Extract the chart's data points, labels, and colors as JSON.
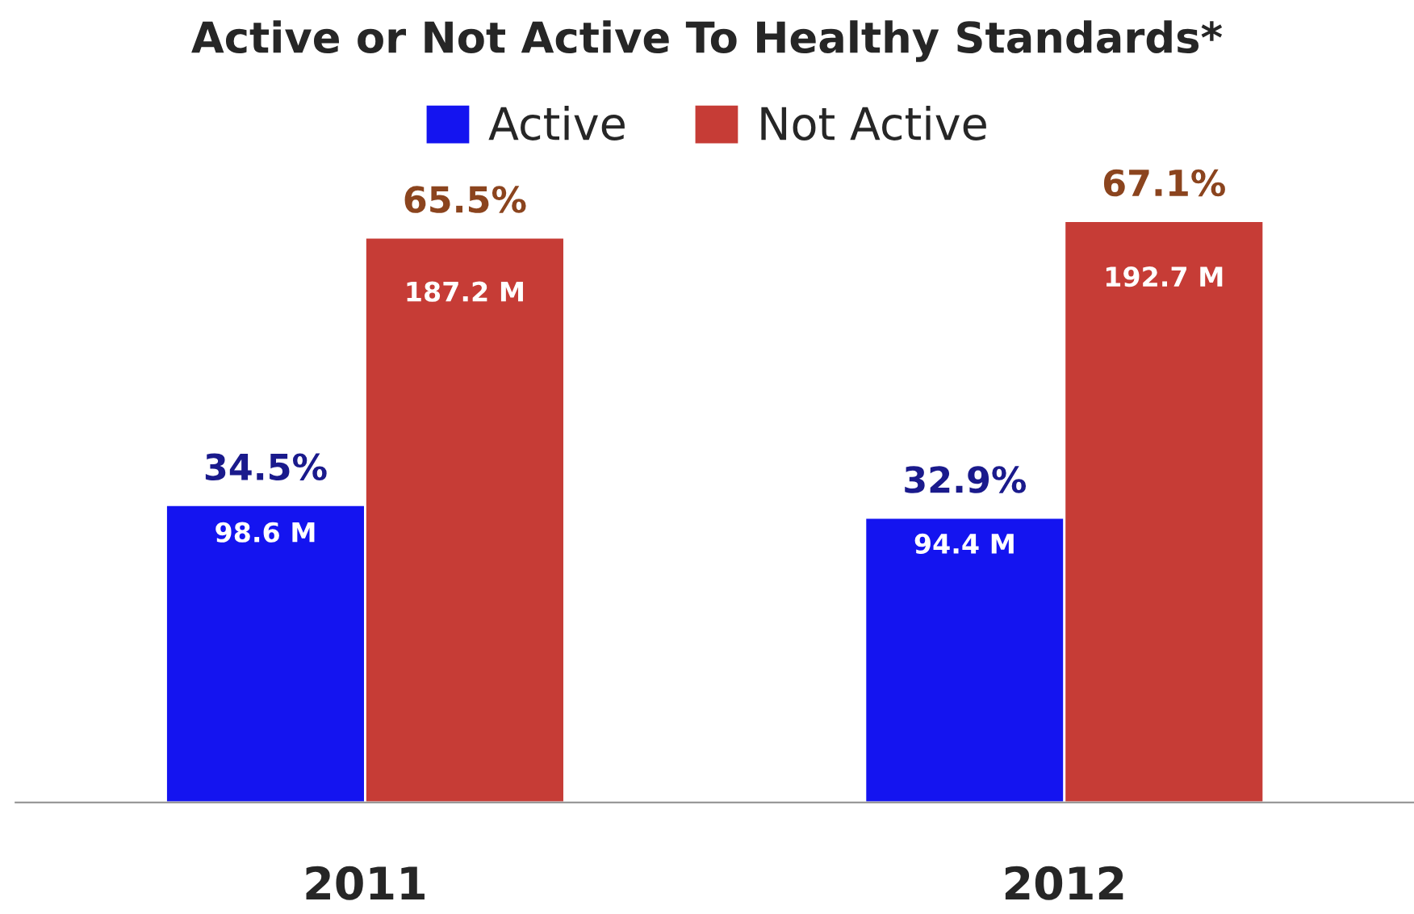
{
  "chart_data": {
    "type": "bar",
    "title": "Active or Not Active To Healthy Standards*",
    "categories": [
      "2011",
      "2012"
    ],
    "series": [
      {
        "name": "Active",
        "color": "#1414f0",
        "values": [
          98.6,
          94.4
        ],
        "value_labels": [
          "98.6 M",
          "94.4 M"
        ]
      },
      {
        "name": "Not Active",
        "color": "#c63c36",
        "values": [
          187.2,
          192.7
        ],
        "value_labels": [
          "187.2 M",
          "192.7 M"
        ]
      }
    ],
    "annotations": [
      {
        "text": "34.5%",
        "x": "2011",
        "y": 98.6
      },
      {
        "text": "65.5%",
        "x": "2011",
        "y": 187.2
      },
      {
        "text": "32.9%",
        "x": "2012",
        "y": 94.4
      },
      {
        "text": "67.1%",
        "x": "2012",
        "y": 192.7
      }
    ],
    "legend": "top",
    "grid": false
  }
}
